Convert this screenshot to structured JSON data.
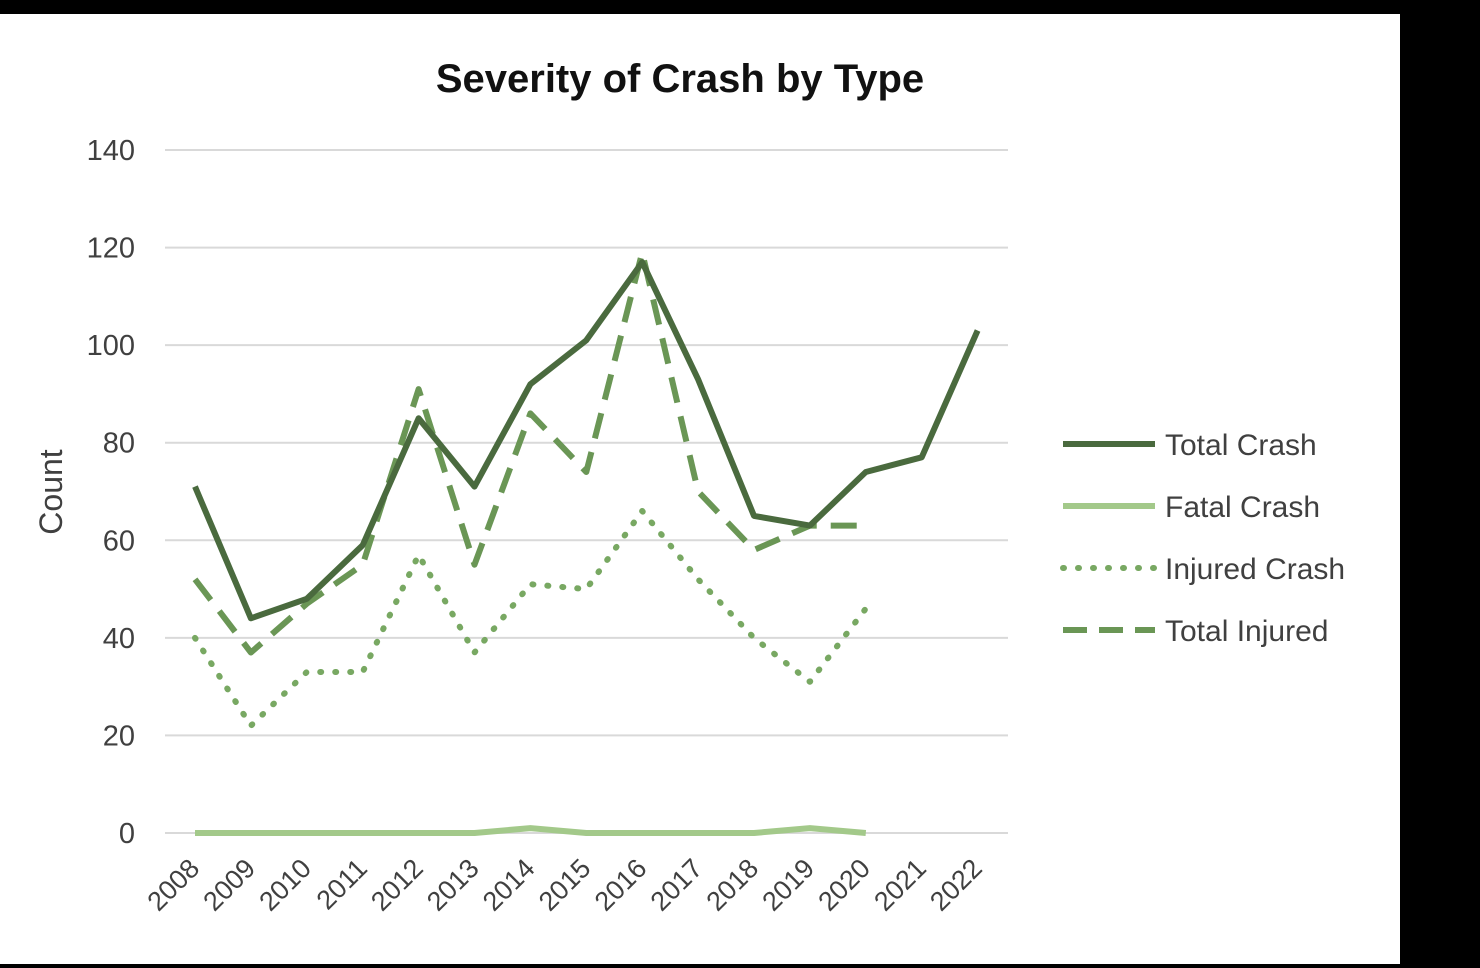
{
  "chart_data": {
    "type": "line",
    "title": "Severity of Crash by Type",
    "xlabel": "",
    "ylabel": "Count",
    "ylim": [
      0,
      140
    ],
    "yticks": [
      0,
      20,
      40,
      60,
      80,
      100,
      120,
      140
    ],
    "grid": true,
    "legend_position": "right",
    "categories": [
      "2008",
      "2009",
      "2010",
      "2011",
      "2012",
      "2013",
      "2014",
      "2015",
      "2016",
      "2017",
      "2018",
      "2019",
      "2020",
      "2021",
      "2022"
    ],
    "series": [
      {
        "name": "Total Crash",
        "style": "solid",
        "color": "#4a6a3e",
        "values": [
          71,
          44,
          48,
          59,
          85,
          71,
          92,
          101,
          117,
          93,
          65,
          63,
          74,
          77,
          103
        ]
      },
      {
        "name": "Fatal Crash",
        "style": "solid",
        "color": "#a3c98a",
        "values": [
          0,
          0,
          0,
          0,
          0,
          0,
          1,
          0,
          0,
          0,
          0,
          1,
          0,
          null,
          null
        ]
      },
      {
        "name": "Injured Crash",
        "style": "dotted",
        "color": "#78a862",
        "values": [
          40,
          22,
          33,
          33,
          57,
          37,
          51,
          50,
          66,
          52,
          40,
          31,
          46,
          null,
          null
        ]
      },
      {
        "name": "Total Injured",
        "style": "dashed",
        "color": "#6a9655",
        "values": [
          52,
          37,
          47,
          55,
          91,
          55,
          86,
          74,
          119,
          70,
          58,
          63,
          63,
          null,
          null
        ]
      }
    ]
  }
}
